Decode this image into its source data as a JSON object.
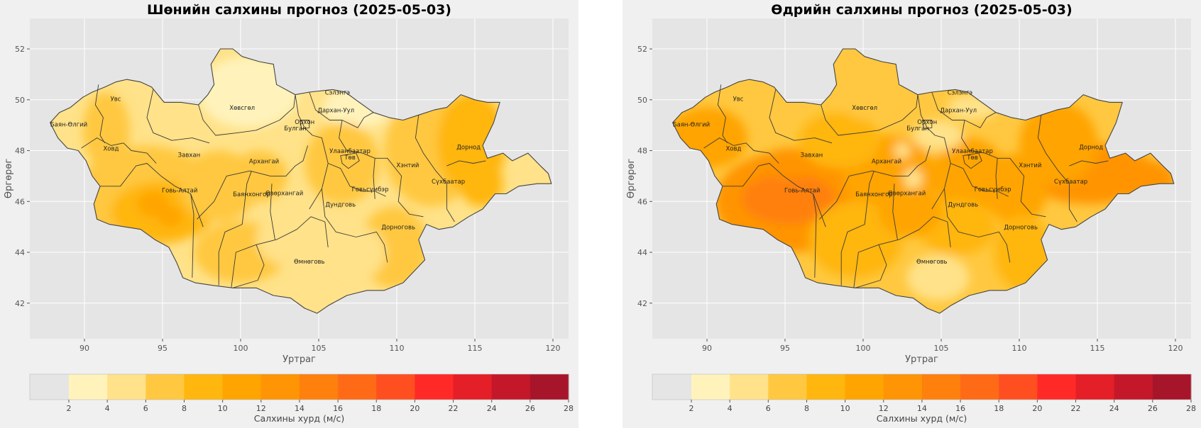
{
  "panels": [
    {
      "id": "left",
      "title": "Шөнийн салхины прогноз (2025-05-03)",
      "intensity": 0
    },
    {
      "id": "right",
      "title": "Өдрийн салхины прогноз (2025-05-03)",
      "intensity": 1
    }
  ],
  "xlabel": "Уртраг",
  "ylabel": "Өргөрөг",
  "x_ticks": [
    "90",
    "95",
    "100",
    "105",
    "110",
    "115",
    "120"
  ],
  "y_ticks": [
    "52",
    "50",
    "48",
    "46",
    "44",
    "42"
  ],
  "map_extent": {
    "lon": [
      86.5,
      121.0
    ],
    "lat": [
      40.6,
      53.2
    ]
  },
  "grid": true,
  "provinces": [
    {
      "name": "Баян-Өлгий",
      "lon": 89.0,
      "lat": 48.95
    },
    {
      "name": "Увс",
      "lon": 92.0,
      "lat": 49.95
    },
    {
      "name": "Ховд",
      "lon": 91.7,
      "lat": 48.0
    },
    {
      "name": "Завхан",
      "lon": 96.7,
      "lat": 47.75
    },
    {
      "name": "Говь-Алтай",
      "lon": 96.1,
      "lat": 46.35
    },
    {
      "name": "Хөвсгөл",
      "lon": 100.1,
      "lat": 49.6
    },
    {
      "name": "Архангай",
      "lon": 101.5,
      "lat": 47.5
    },
    {
      "name": "Баянхонгор",
      "lon": 100.7,
      "lat": 46.2
    },
    {
      "name": "Өвөрхангай",
      "lon": 102.8,
      "lat": 46.25
    },
    {
      "name": "Булган",
      "lon": 103.5,
      "lat": 48.8
    },
    {
      "name": "Орхон",
      "lon": 104.1,
      "lat": 49.05
    },
    {
      "name": "Сэлэнгэ",
      "lon": 106.2,
      "lat": 50.2
    },
    {
      "name": "Дархан-Уул",
      "lon": 106.1,
      "lat": 49.5
    },
    {
      "name": "Улаанбаатар",
      "lon": 107.0,
      "lat": 47.9
    },
    {
      "name": "Төв",
      "lon": 107.0,
      "lat": 47.65
    },
    {
      "name": "Говьсүмбэр",
      "lon": 108.3,
      "lat": 46.4
    },
    {
      "name": "Хэнтий",
      "lon": 110.7,
      "lat": 47.35
    },
    {
      "name": "Дорнод",
      "lon": 114.6,
      "lat": 48.05
    },
    {
      "name": "Сүхбаатар",
      "lon": 113.3,
      "lat": 46.7
    },
    {
      "name": "Дундговь",
      "lon": 106.4,
      "lat": 45.8
    },
    {
      "name": "Дорноговь",
      "lon": 110.1,
      "lat": 44.9
    },
    {
      "name": "Өмнөговь",
      "lon": 104.4,
      "lat": 43.55
    }
  ],
  "colorbar": {
    "label": "Салхины хурд (м/с)",
    "ticks": [
      "2",
      "4",
      "6",
      "8",
      "10",
      "12",
      "14",
      "16",
      "18",
      "20",
      "22",
      "24",
      "26",
      "28"
    ],
    "under_color": "#e5e5e5",
    "colors": [
      "#fff3bb",
      "#ffe289",
      "#ffc840",
      "#ffb60e",
      "#ffa400",
      "#ff9405",
      "#ff800d",
      "#ff6a17",
      "#ff4f20",
      "#ff2a27",
      "#e41f27",
      "#c4182a",
      "#a7152a"
    ]
  },
  "chart_data": [
    {
      "type": "filled-contour-map",
      "title": "Шөнийн салхины прогноз (2025-05-03)",
      "xlabel": "Уртраг",
      "ylabel": "Өргөрөг",
      "xlim": [
        86.5,
        121.0
      ],
      "ylim": [
        40.6,
        53.2
      ],
      "levels_ms": [
        2,
        4,
        6,
        8,
        10,
        12,
        14,
        16,
        18,
        20,
        22,
        24,
        26,
        28
      ],
      "approx_range_ms": [
        2,
        12
      ],
      "colorbar_label": "Салхины хурд (м/с)"
    },
    {
      "type": "filled-contour-map",
      "title": "Өдрийн салхины прогноз (2025-05-03)",
      "xlabel": "Уртраг",
      "ylabel": "Өргөрөг",
      "xlim": [
        86.5,
        121.0
      ],
      "ylim": [
        40.6,
        53.2
      ],
      "levels_ms": [
        2,
        4,
        6,
        8,
        10,
        12,
        14,
        16,
        18,
        20,
        22,
        24,
        26,
        28
      ],
      "approx_range_ms": [
        4,
        16
      ],
      "colorbar_label": "Салхины хурд (м/с)"
    }
  ]
}
